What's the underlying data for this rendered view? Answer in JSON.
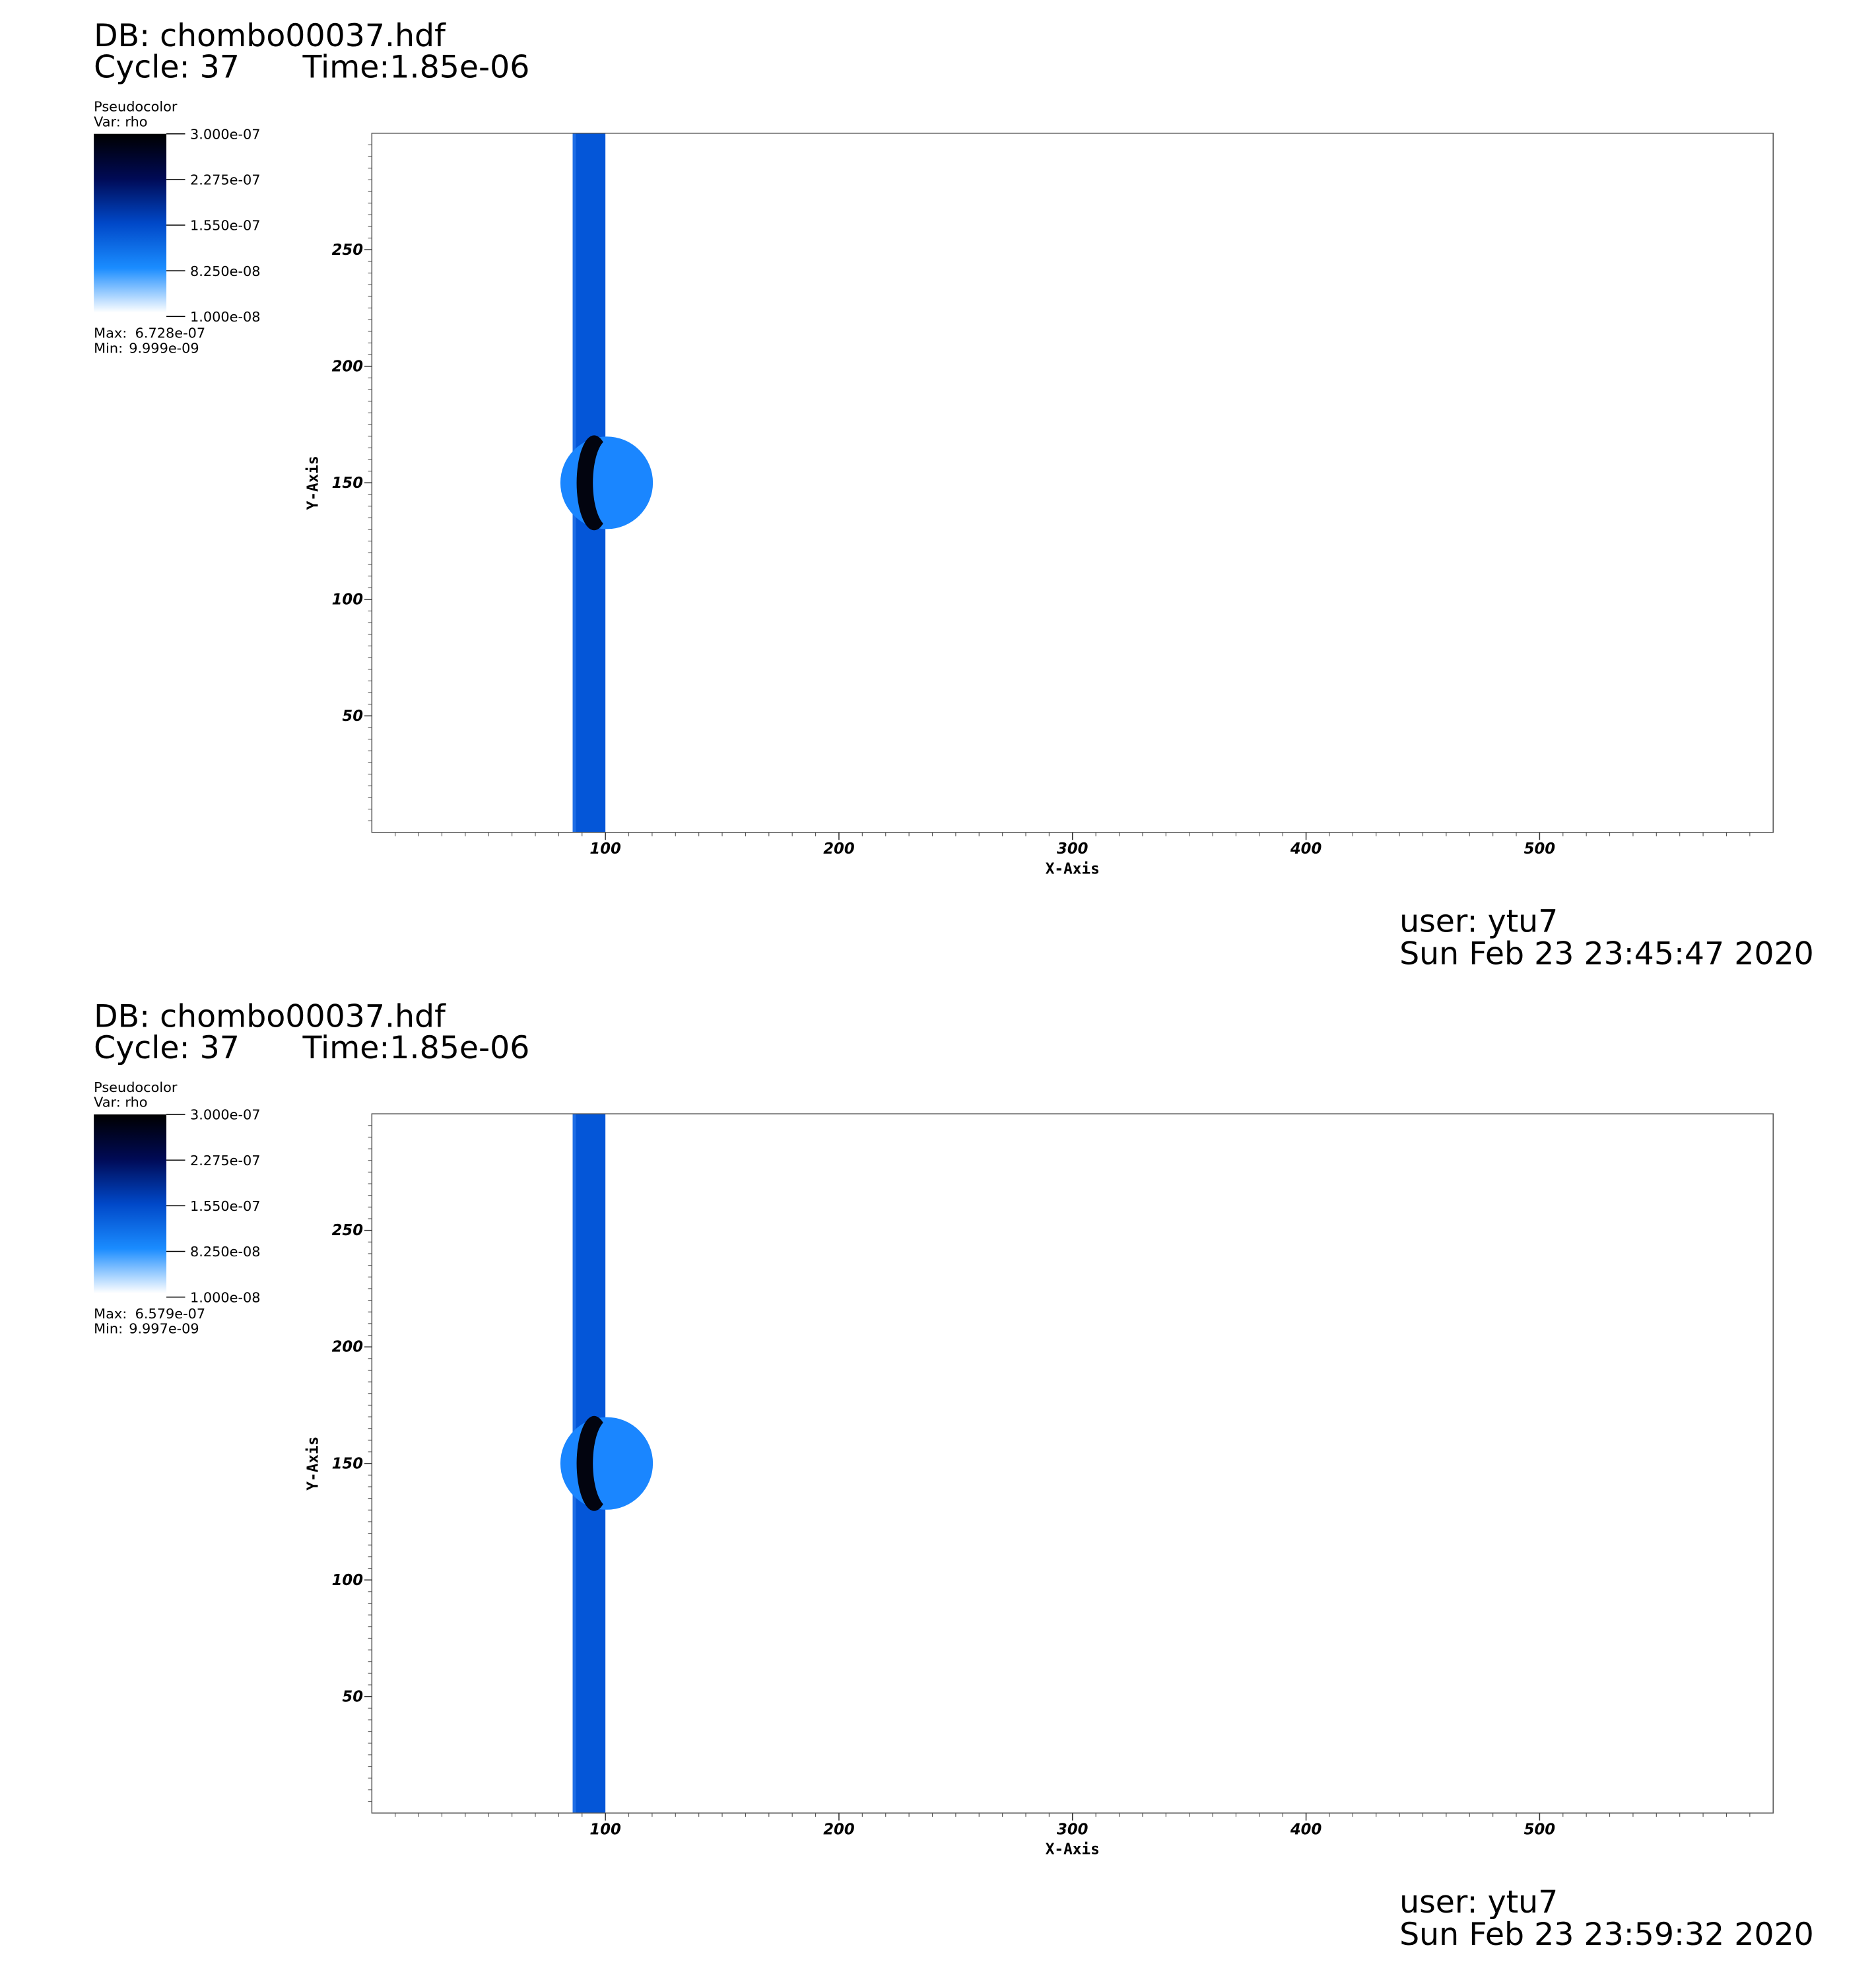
{
  "chart_data": [
    {
      "type": "pseudocolor",
      "title": "DB: chombo00037.hdf",
      "cycle": "Cycle: 37",
      "time": "Time:1.85e-06",
      "xlabel": "X-Axis",
      "ylabel": "Y-Axis",
      "xlim": [
        0,
        600
      ],
      "ylim": [
        0,
        300
      ],
      "xticks": [
        100,
        200,
        300,
        400,
        500
      ],
      "yticks": [
        50,
        100,
        150,
        200,
        250
      ],
      "legend": {
        "title": "Pseudocolor",
        "variable": "Var: rho",
        "clim": [
          1e-08,
          3e-07
        ],
        "ticks": [
          {
            "value": 3e-07,
            "label": "3.000e-07"
          },
          {
            "value": 2.275e-07,
            "label": "2.275e-07"
          },
          {
            "value": 1.55e-07,
            "label": "1.550e-07"
          },
          {
            "value": 8.25e-08,
            "label": "8.250e-08"
          },
          {
            "value": 1e-08,
            "label": "1.000e-08"
          }
        ],
        "max_label": "Max:",
        "max": {
          "value": 6.728e-07,
          "label": "6.728e-07"
        },
        "min_label": "Min:",
        "min": {
          "value": 9.999e-09,
          "label": "9.999e-09"
        }
      },
      "user": "user: ytu7",
      "date": "Sun Feb 23 23:45:47 2020"
    },
    {
      "type": "pseudocolor",
      "title": "DB: chombo00037.hdf",
      "cycle": "Cycle: 37",
      "time": "Time:1.85e-06",
      "xlabel": "X-Axis",
      "ylabel": "Y-Axis",
      "xlim": [
        0,
        600
      ],
      "ylim": [
        0,
        300
      ],
      "xticks": [
        100,
        200,
        300,
        400,
        500
      ],
      "yticks": [
        50,
        100,
        150,
        200,
        250
      ],
      "legend": {
        "title": "Pseudocolor",
        "variable": "Var: rho",
        "clim": [
          1e-08,
          3e-07
        ],
        "ticks": [
          {
            "value": 3e-07,
            "label": "3.000e-07"
          },
          {
            "value": 2.275e-07,
            "label": "2.275e-07"
          },
          {
            "value": 1.55e-07,
            "label": "1.550e-07"
          },
          {
            "value": 8.25e-08,
            "label": "8.250e-08"
          },
          {
            "value": 1e-08,
            "label": "1.000e-08"
          }
        ],
        "max_label": "Max:",
        "max": {
          "value": 6.579e-07,
          "label": "6.579e-07"
        },
        "min_label": "Min:",
        "min": {
          "value": 9.997e-09,
          "label": "9.997e-09"
        }
      },
      "user": "user: ytu7",
      "date": "Sun Feb 23 23:59:32 2020"
    }
  ]
}
